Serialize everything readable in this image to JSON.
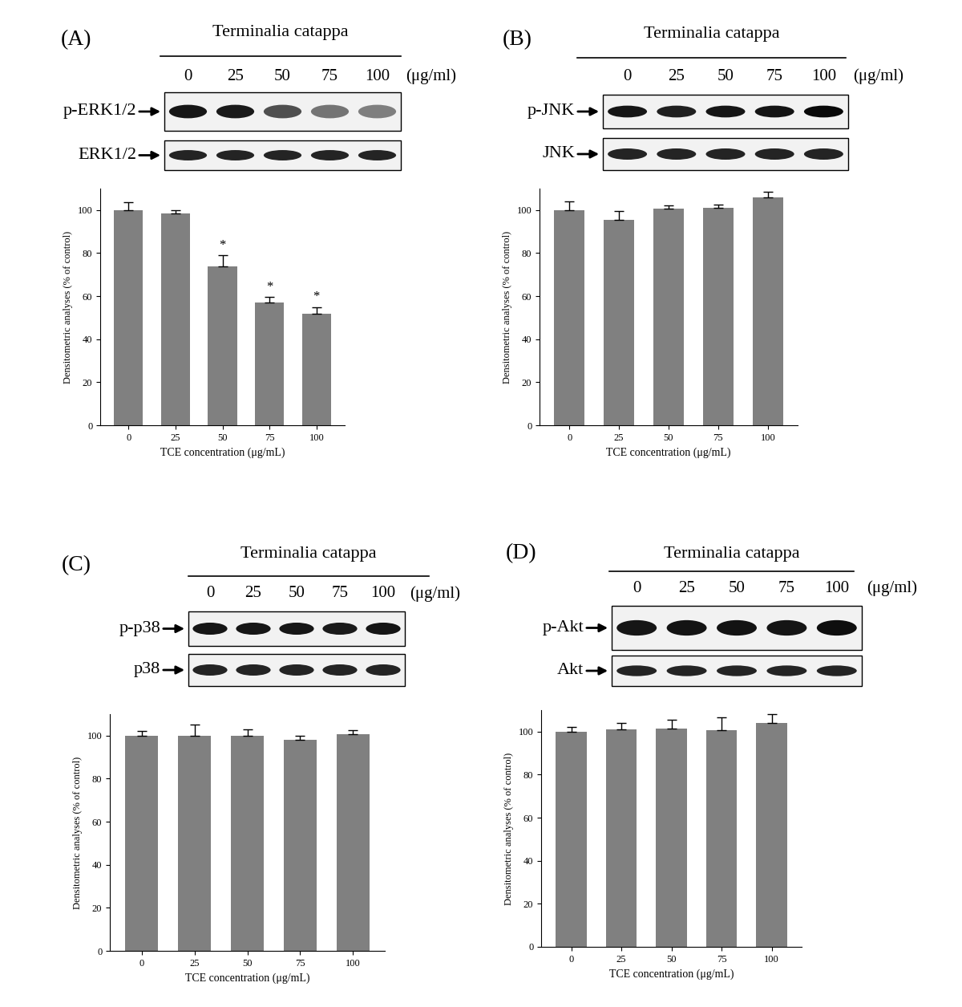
{
  "chart_data": [
    {
      "type": "bar",
      "title": "(A)",
      "categories": [
        "0",
        "25",
        "50",
        "75",
        "100"
      ],
      "values": [
        100,
        98.5,
        74,
        57,
        52
      ],
      "errors": [
        3.5,
        1.5,
        5,
        2.5,
        3
      ],
      "color": "#808080",
      "xlabel": "TCE concentration (μg/mL)",
      "ylabel": "Densitometric analyses (% of control)",
      "ylim": [
        0,
        110
      ],
      "yticks": [
        0,
        20,
        40,
        60,
        80,
        100
      ],
      "annotations": [
        {
          "category": "50",
          "text": "*"
        },
        {
          "category": "75",
          "text": "*"
        },
        {
          "category": "100",
          "text": "*"
        }
      ]
    },
    {
      "type": "bar",
      "title": "(B)",
      "categories": [
        "0",
        "25",
        "50",
        "75",
        "100"
      ],
      "values": [
        100,
        95.5,
        100.5,
        101,
        106
      ],
      "errors": [
        4,
        4,
        1.5,
        1.5,
        2.5
      ],
      "color": "#808080",
      "xlabel": "TCE concentration (μg/mL)",
      "ylabel": "Densitometric analyses (% of control)",
      "ylim": [
        0,
        110
      ],
      "yticks": [
        0,
        20,
        40,
        60,
        80,
        100
      ]
    },
    {
      "type": "bar",
      "title": "(C)",
      "categories": [
        "0",
        "25",
        "50",
        "75",
        "100"
      ],
      "values": [
        100,
        100,
        100,
        98,
        100.5
      ],
      "errors": [
        2,
        5,
        3,
        2,
        2
      ],
      "color": "#808080",
      "xlabel": "TCE concentration (μg/mL)",
      "ylabel": "Densitometric analyses (% of control)",
      "ylim": [
        0,
        110
      ],
      "yticks": [
        0,
        20,
        40,
        60,
        80,
        100
      ]
    },
    {
      "type": "bar",
      "title": "(D)",
      "categories": [
        "0",
        "25",
        "50",
        "75",
        "100"
      ],
      "values": [
        100,
        101,
        101.5,
        100.5,
        104
      ],
      "errors": [
        2,
        3,
        4,
        6,
        4
      ],
      "color": "#808080",
      "xlabel": "TCE concentration (μg/mL)",
      "ylabel": "Densitometric analyses (% of control)",
      "ylim": [
        0,
        110
      ],
      "yticks": [
        0,
        20,
        40,
        60,
        80,
        100
      ]
    }
  ],
  "blots": [
    {
      "title": "Terminalia catappa",
      "unit": "(μg/ml)",
      "rows": [
        "p-ERK1/2",
        "ERK1/2"
      ]
    },
    {
      "title": "Terminalia catappa",
      "unit": "(μg/ml)",
      "rows": [
        "p-JNK",
        "JNK"
      ]
    },
    {
      "title": "Terminalia catappa",
      "unit": "(μg/ml)",
      "rows": [
        "p-p38",
        "p38"
      ]
    },
    {
      "title": "Terminalia catappa",
      "unit": "(μg/ml)",
      "rows": [
        "p-Akt",
        "Akt"
      ]
    }
  ]
}
